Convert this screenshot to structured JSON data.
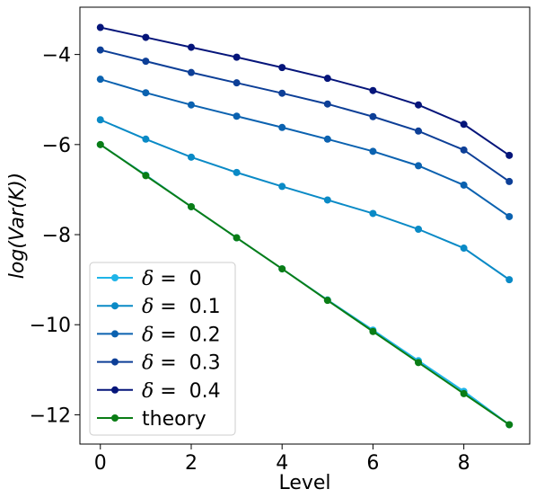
{
  "chart_data": {
    "type": "line",
    "xlabel": "Level",
    "ylabel": "log(Var(K))",
    "xlim": [
      -0.45,
      9.45
    ],
    "ylim": [
      -12.65,
      -2.95
    ],
    "xticks": [
      0,
      2,
      4,
      6,
      8
    ],
    "yticks": [
      -4,
      -6,
      -8,
      -10,
      -12
    ],
    "xtick_labels": [
      "0",
      "2",
      "4",
      "6",
      "8"
    ],
    "ytick_labels": [
      "−4",
      "−6",
      "−8",
      "−10",
      "−12"
    ],
    "grid": false,
    "legend_position": "lower-left",
    "x": [
      0,
      1,
      2,
      3,
      4,
      5,
      6,
      7,
      8,
      9
    ],
    "series": [
      {
        "name": "δ =  0",
        "name_symbol": "δ",
        "name_rest": " =  0",
        "color": "#1fb4e8",
        "values": [
          -6.0,
          -6.68,
          -7.38,
          -8.07,
          -8.76,
          -9.45,
          -10.12,
          -10.8,
          -11.48,
          -12.22
        ]
      },
      {
        "name": "δ =  0.1",
        "name_symbol": "δ",
        "name_rest": " =  0.1",
        "color": "#0a8ac6",
        "values": [
          -5.45,
          -5.88,
          -6.28,
          -6.62,
          -6.93,
          -7.23,
          -7.53,
          -7.88,
          -8.3,
          -9.0
        ]
      },
      {
        "name": "δ =  0.2",
        "name_symbol": "δ",
        "name_rest": " =  0.2",
        "color": "#0b62b0",
        "values": [
          -4.55,
          -4.85,
          -5.12,
          -5.37,
          -5.62,
          -5.88,
          -6.15,
          -6.47,
          -6.9,
          -7.6
        ]
      },
      {
        "name": "δ =  0.3",
        "name_symbol": "δ",
        "name_rest": " =  0.3",
        "color": "#0d3f97",
        "values": [
          -3.9,
          -4.15,
          -4.4,
          -4.63,
          -4.86,
          -5.1,
          -5.38,
          -5.7,
          -6.12,
          -6.82
        ]
      },
      {
        "name": "δ =  0.4",
        "name_symbol": "δ",
        "name_rest": " =  0.4",
        "color": "#05157a",
        "values": [
          -3.4,
          -3.62,
          -3.84,
          -4.06,
          -4.29,
          -4.53,
          -4.8,
          -5.12,
          -5.55,
          -6.24
        ]
      },
      {
        "name": "theory",
        "name_symbol": "",
        "name_rest": "theory",
        "color": "#0a7d15",
        "values": [
          -6.0,
          -6.69,
          -7.38,
          -8.07,
          -8.76,
          -9.46,
          -10.15,
          -10.84,
          -11.53,
          -12.22
        ]
      }
    ]
  }
}
